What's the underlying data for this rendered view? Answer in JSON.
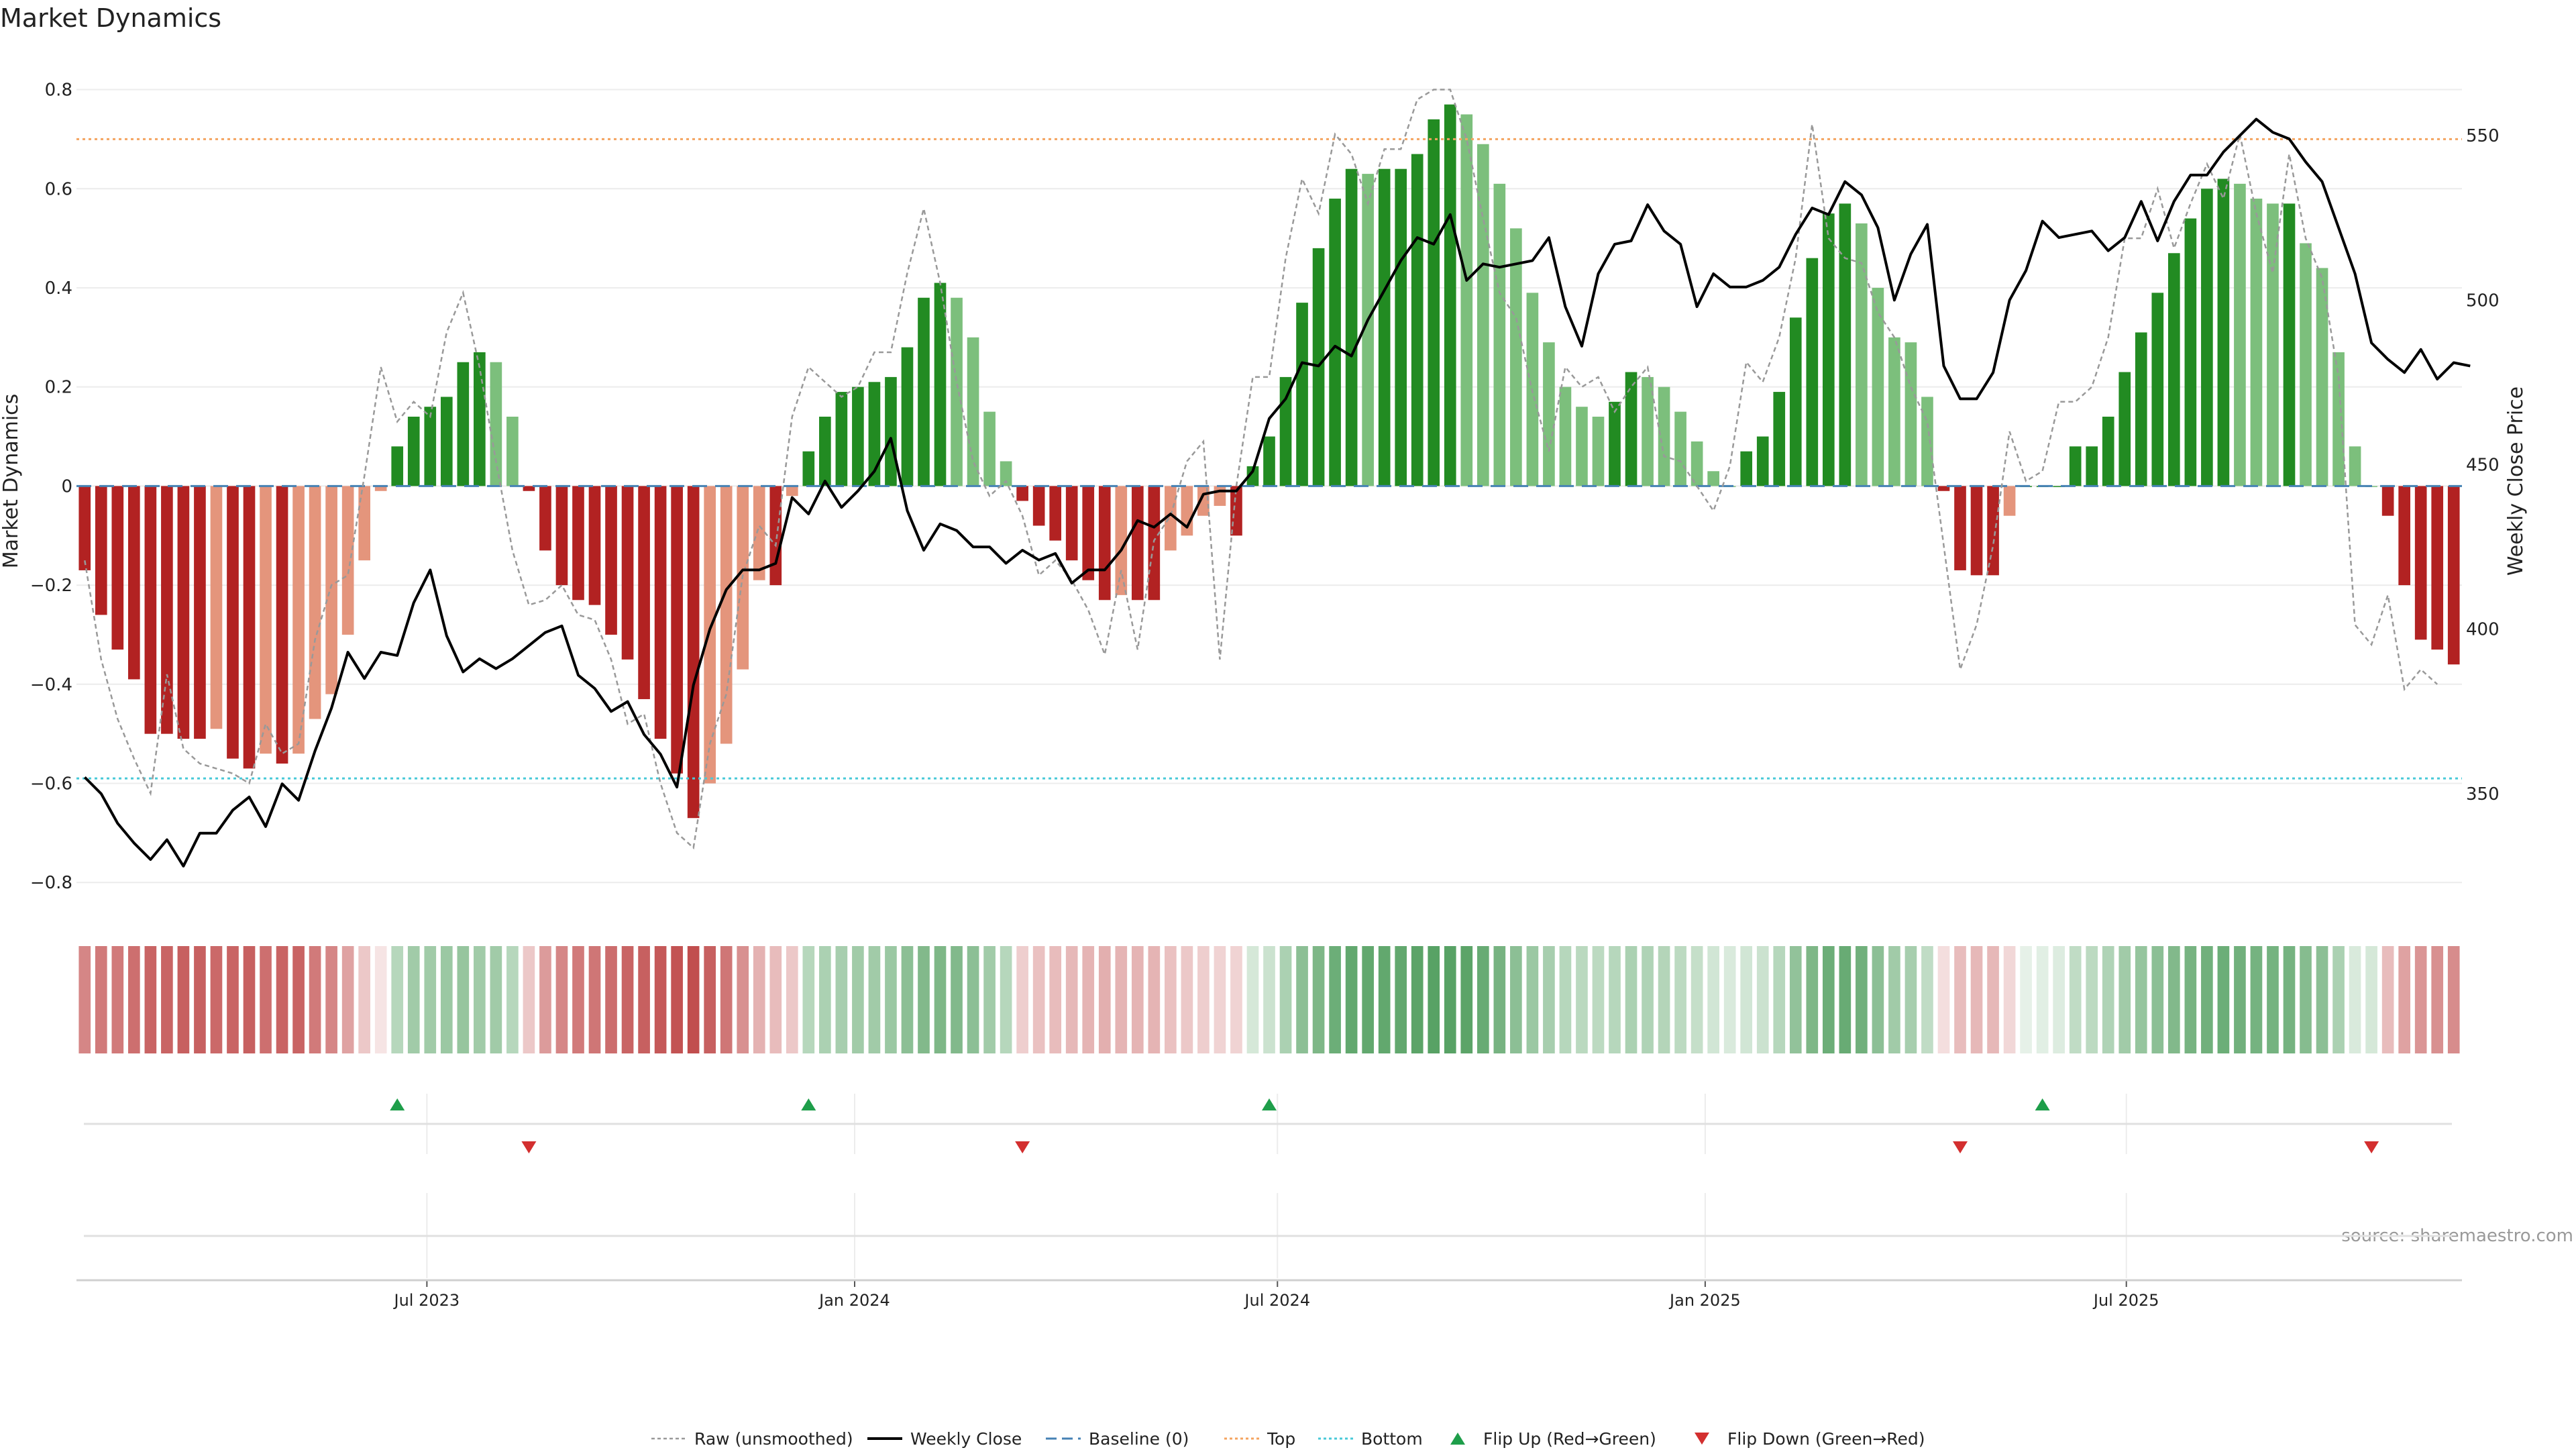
{
  "chart_data": {
    "type": "bar",
    "title": "Market Dynamics",
    "ylabel_left": "Market Dynamics",
    "ylabel_right": "Weekly Close Price",
    "source": "source: sharemaestro.com",
    "x_tick_labels": [
      "Jul 2023",
      "Jan 2024",
      "Jul 2024",
      "Jan 2025",
      "Jul 2025"
    ],
    "y_left": {
      "ylim": [
        -0.82,
        0.84
      ],
      "ticks": [
        -0.8,
        -0.6,
        -0.4,
        -0.2,
        0,
        0.2,
        0.4,
        0.6,
        0.8
      ],
      "tick_labels": [
        "−0.8",
        "−0.6",
        "−0.4",
        "−0.2",
        "0",
        "0.2",
        "0.4",
        "0.6",
        "0.8"
      ]
    },
    "y_right": {
      "ylim": [
        320,
        570
      ],
      "ticks": [
        350,
        400,
        450,
        500,
        550
      ],
      "tick_labels": [
        "350",
        "400",
        "450",
        "500",
        "550"
      ]
    },
    "top_level": 0.7,
    "bottom_level": -0.59,
    "baseline": 0,
    "grid": true,
    "colors": {
      "strong_green": "#228B22",
      "light_green": "#7CBF7C",
      "strong_red": "#B22222",
      "light_red": "#E4957C",
      "raw": "#999999",
      "close": "#000000",
      "baseline": "#4682B4",
      "top": "#F4A460",
      "bottom": "#48C9D8",
      "flip_up": "#1E9E4A",
      "flip_down": "#D32F2F"
    },
    "dynamics": [
      -0.17,
      -0.26,
      -0.33,
      -0.39,
      -0.5,
      -0.5,
      -0.51,
      -0.51,
      -0.49,
      -0.55,
      -0.57,
      -0.54,
      -0.56,
      -0.54,
      -0.47,
      -0.42,
      -0.3,
      -0.15,
      -0.01,
      0.08,
      0.14,
      0.16,
      0.18,
      0.25,
      0.27,
      0.25,
      0.14,
      -0.01,
      -0.13,
      -0.2,
      -0.23,
      -0.24,
      -0.3,
      -0.35,
      -0.43,
      -0.51,
      -0.58,
      -0.67,
      -0.6,
      -0.52,
      -0.37,
      -0.19,
      -0.2,
      -0.02,
      0.07,
      0.14,
      0.19,
      0.2,
      0.21,
      0.22,
      0.28,
      0.38,
      0.41,
      0.38,
      0.3,
      0.15,
      0.05,
      -0.03,
      -0.08,
      -0.11,
      -0.15,
      -0.19,
      -0.23,
      -0.22,
      -0.23,
      -0.23,
      -0.13,
      -0.1,
      -0.06,
      -0.04,
      -0.1,
      0.04,
      0.1,
      0.22,
      0.37,
      0.48,
      0.58,
      0.64,
      0.63,
      0.64,
      0.64,
      0.67,
      0.74,
      0.77,
      0.75,
      0.69,
      0.61,
      0.52,
      0.39,
      0.29,
      0.2,
      0.16,
      0.14,
      0.17,
      0.23,
      0.22,
      0.2,
      0.15,
      0.09,
      0.03,
      0.0,
      0.07,
      0.1,
      0.19,
      0.34,
      0.46,
      0.55,
      0.57,
      0.53,
      0.4,
      0.3,
      0.29,
      0.18,
      -0.01,
      -0.17,
      -0.18,
      -0.18,
      -0.06,
      0.0,
      0.0,
      0.0,
      0.08,
      0.08,
      0.14,
      0.23,
      0.31,
      0.39,
      0.47,
      0.54,
      0.6,
      0.62,
      0.61,
      0.58,
      0.57,
      0.57,
      0.49,
      0.44,
      0.27,
      0.08,
      0.0,
      -0.06,
      -0.2,
      -0.31,
      -0.33,
      -0.36
    ],
    "raw_series": [
      -0.15,
      -0.35,
      -0.47,
      -0.55,
      -0.62,
      -0.38,
      -0.53,
      -0.56,
      -0.57,
      -0.58,
      -0.6,
      -0.48,
      -0.54,
      -0.52,
      -0.31,
      -0.2,
      -0.18,
      0.02,
      0.24,
      0.13,
      0.17,
      0.14,
      0.31,
      0.39,
      0.24,
      0.05,
      -0.13,
      -0.24,
      -0.23,
      -0.2,
      -0.26,
      -0.27,
      -0.35,
      -0.48,
      -0.46,
      -0.6,
      -0.7,
      -0.73,
      -0.52,
      -0.42,
      -0.18,
      -0.08,
      -0.12,
      0.14,
      0.24,
      0.21,
      0.18,
      0.2,
      0.27,
      0.27,
      0.43,
      0.56,
      0.41,
      0.21,
      0.05,
      -0.02,
      0.01,
      -0.06,
      -0.18,
      -0.15,
      -0.19,
      -0.25,
      -0.34,
      -0.17,
      -0.33,
      -0.11,
      -0.06,
      0.05,
      0.09,
      -0.35,
      0.0,
      0.22,
      0.22,
      0.46,
      0.62,
      0.55,
      0.71,
      0.67,
      0.57,
      0.68,
      0.68,
      0.78,
      0.8,
      0.8,
      0.7,
      0.54,
      0.39,
      0.34,
      0.19,
      0.07,
      0.24,
      0.2,
      0.22,
      0.15,
      0.2,
      0.24,
      0.06,
      0.05,
      0.0,
      -0.05,
      0.04,
      0.25,
      0.21,
      0.3,
      0.46,
      0.73,
      0.5,
      0.46,
      0.45,
      0.35,
      0.3,
      0.2,
      0.13,
      -0.12,
      -0.37,
      -0.28,
      -0.12,
      0.11,
      0.01,
      0.03,
      0.17,
      0.17,
      0.2,
      0.3,
      0.5,
      0.5,
      0.6,
      0.48,
      0.57,
      0.65,
      0.58,
      0.71,
      0.55,
      0.43,
      0.67,
      0.5,
      0.42,
      0.22,
      -0.28,
      -0.32,
      -0.22,
      -0.41,
      -0.37,
      -0.4
    ],
    "weekly_close": [
      355,
      350,
      341,
      335,
      330,
      336,
      328,
      338,
      338,
      345,
      349,
      340,
      353,
      348,
      363,
      376,
      393,
      385,
      393,
      392,
      408,
      418,
      398,
      387,
      391,
      388,
      391,
      395,
      399,
      401,
      386,
      382,
      375,
      378,
      368,
      362,
      352,
      383,
      400,
      412,
      418,
      418,
      420,
      440,
      435,
      445,
      437,
      442,
      448,
      458,
      436,
      424,
      432,
      430,
      425,
      425,
      420,
      424,
      421,
      423,
      414,
      418,
      418,
      424,
      433,
      431,
      435,
      431,
      441,
      442,
      442,
      448,
      464,
      470,
      481,
      480,
      486,
      483,
      494,
      503,
      512,
      519,
      517,
      526,
      506,
      511,
      510,
      511,
      512,
      519,
      498,
      486,
      508,
      517,
      518,
      529,
      521,
      517,
      498,
      508,
      504,
      504,
      506,
      510,
      520,
      528,
      526,
      536,
      532,
      522,
      500,
      514,
      523,
      480,
      470,
      470,
      478,
      500,
      509,
      524,
      519,
      520,
      521,
      515,
      519,
      530,
      518,
      530,
      538,
      538,
      545,
      550,
      555,
      551,
      549,
      542,
      536,
      522,
      508,
      487,
      482,
      478,
      485,
      476,
      481,
      480
    ],
    "intensity_strip": [
      0.55,
      0.6,
      0.6,
      0.65,
      0.7,
      0.7,
      0.72,
      0.72,
      0.68,
      0.7,
      0.72,
      0.65,
      0.7,
      0.7,
      0.6,
      0.55,
      0.42,
      0.25,
      0.12,
      0.35,
      0.45,
      0.45,
      0.48,
      0.5,
      0.45,
      0.45,
      0.35,
      0.25,
      0.45,
      0.55,
      0.6,
      0.62,
      0.66,
      0.7,
      0.72,
      0.75,
      0.78,
      0.8,
      0.72,
      0.62,
      0.5,
      0.35,
      0.3,
      0.25,
      0.35,
      0.4,
      0.42,
      0.45,
      0.45,
      0.48,
      0.55,
      0.6,
      0.62,
      0.6,
      0.55,
      0.45,
      0.35,
      0.22,
      0.28,
      0.3,
      0.32,
      0.34,
      0.36,
      0.34,
      0.34,
      0.34,
      0.28,
      0.25,
      0.22,
      0.2,
      0.2,
      0.2,
      0.25,
      0.4,
      0.55,
      0.62,
      0.7,
      0.75,
      0.75,
      0.75,
      0.75,
      0.78,
      0.8,
      0.8,
      0.78,
      0.72,
      0.65,
      0.55,
      0.48,
      0.42,
      0.35,
      0.33,
      0.32,
      0.35,
      0.4,
      0.38,
      0.36,
      0.32,
      0.28,
      0.22,
      0.18,
      0.22,
      0.25,
      0.35,
      0.52,
      0.62,
      0.7,
      0.72,
      0.68,
      0.55,
      0.45,
      0.42,
      0.3,
      0.15,
      0.3,
      0.32,
      0.32,
      0.18,
      0.12,
      0.14,
      0.16,
      0.3,
      0.32,
      0.38,
      0.45,
      0.5,
      0.55,
      0.6,
      0.65,
      0.68,
      0.7,
      0.68,
      0.66,
      0.66,
      0.66,
      0.58,
      0.55,
      0.4,
      0.18,
      0.2,
      0.3,
      0.42,
      0.48,
      0.5,
      0.52
    ],
    "flip_up_indices": [
      19,
      44,
      72,
      119
    ],
    "flip_down_indices": [
      27,
      57,
      114,
      139
    ],
    "x_tick_week_indices": [
      21.3,
      47.3,
      73,
      99,
      124.6
    ],
    "legend": [
      {
        "label": "Raw (unsmoothed)",
        "style": "raw"
      },
      {
        "label": "Weekly Close",
        "style": "close"
      },
      {
        "label": "Baseline (0)",
        "style": "baseline"
      },
      {
        "label": "Top",
        "style": "top"
      },
      {
        "label": "Bottom",
        "style": "bottom"
      },
      {
        "label": "Flip Up (Red→Green)",
        "style": "flip_up"
      },
      {
        "label": "Flip Down (Green→Red)",
        "style": "flip_down"
      }
    ]
  }
}
